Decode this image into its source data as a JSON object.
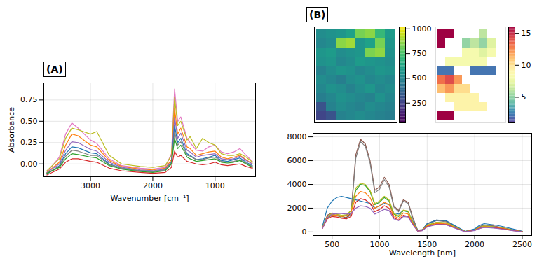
{
  "chart_data": [
    {
      "type": "line",
      "panel": "(A)",
      "x_label": "Wavenumber [cm⁻¹]",
      "y_label": "Absorbance",
      "grid": true,
      "xlim": [
        3750,
        350
      ],
      "xticks": [
        3000,
        2000,
        1000
      ],
      "ylim": [
        -0.15,
        0.95
      ],
      "yticks": [
        {
          "value": 0,
          "label": "0.00"
        },
        0.25,
        {
          "value": 0.5,
          "label": "0.50"
        },
        0.75
      ],
      "x": [
        3700,
        3500,
        3400,
        3300,
        3200,
        3000,
        2900,
        2700,
        2500,
        2200,
        2000,
        1800,
        1700,
        1650,
        1600,
        1550,
        1450,
        1400,
        1300,
        1200,
        1100,
        1000,
        900,
        800,
        700,
        600,
        500,
        400
      ],
      "series": [
        {
          "color": "#e377c2",
          "values": [
            -0.1,
            0.08,
            0.35,
            0.48,
            0.42,
            0.28,
            0.24,
            0.06,
            -0.02,
            -0.05,
            -0.06,
            -0.04,
            0.12,
            0.88,
            0.5,
            0.55,
            0.3,
            0.25,
            0.16,
            0.15,
            0.2,
            0.22,
            0.14,
            0.12,
            0.14,
            0.18,
            0.1,
            0.03
          ]
        },
        {
          "color": "#bcbd22",
          "values": [
            -0.08,
            0.06,
            0.3,
            0.42,
            0.4,
            0.35,
            0.38,
            0.1,
            0.0,
            -0.03,
            -0.04,
            -0.02,
            0.1,
            0.78,
            0.45,
            0.5,
            0.28,
            0.32,
            0.18,
            0.3,
            0.25,
            0.22,
            0.12,
            0.1,
            0.1,
            0.12,
            0.08,
            0.02
          ]
        },
        {
          "color": "#ff7f0e",
          "values": [
            -0.1,
            0.02,
            0.22,
            0.35,
            0.33,
            0.22,
            0.2,
            0.04,
            -0.03,
            -0.06,
            -0.07,
            -0.05,
            0.05,
            0.65,
            0.35,
            0.42,
            0.2,
            0.18,
            0.1,
            0.12,
            0.14,
            0.15,
            0.08,
            0.06,
            0.08,
            0.1,
            0.05,
            0.0
          ]
        },
        {
          "color": "#9467bd",
          "values": [
            -0.1,
            0.0,
            0.16,
            0.26,
            0.25,
            0.17,
            0.15,
            0.02,
            -0.04,
            -0.07,
            -0.08,
            -0.06,
            0.03,
            0.55,
            0.3,
            0.36,
            0.16,
            0.14,
            0.08,
            0.1,
            0.11,
            0.12,
            0.06,
            0.05,
            0.06,
            0.09,
            0.04,
            0.0
          ]
        },
        {
          "color": "#1f77b4",
          "values": [
            -0.12,
            -0.02,
            0.12,
            0.2,
            0.19,
            0.13,
            0.12,
            0.0,
            -0.05,
            -0.08,
            -0.09,
            -0.07,
            0.02,
            0.45,
            0.25,
            0.3,
            0.12,
            0.1,
            0.05,
            0.06,
            0.08,
            0.1,
            0.04,
            0.03,
            0.05,
            0.07,
            0.02,
            -0.02
          ]
        },
        {
          "color": "#7f7f7f",
          "values": [
            -0.11,
            -0.03,
            0.09,
            0.16,
            0.15,
            0.1,
            0.1,
            -0.01,
            -0.05,
            -0.08,
            -0.09,
            -0.07,
            0.01,
            0.38,
            0.22,
            0.26,
            0.1,
            0.09,
            0.05,
            0.05,
            0.07,
            0.08,
            0.03,
            0.02,
            0.03,
            0.05,
            0.01,
            -0.03
          ]
        },
        {
          "color": "#2ca02c",
          "values": [
            -0.11,
            -0.04,
            0.06,
            0.12,
            0.11,
            0.08,
            0.07,
            -0.02,
            -0.06,
            -0.09,
            -0.1,
            -0.08,
            0.0,
            0.3,
            0.18,
            0.22,
            0.08,
            0.06,
            0.03,
            0.04,
            0.05,
            0.06,
            0.02,
            0.01,
            0.02,
            0.04,
            0.0,
            -0.04
          ]
        },
        {
          "color": "#d62728",
          "values": [
            -0.13,
            -0.06,
            0.02,
            0.06,
            0.06,
            0.03,
            0.02,
            -0.05,
            -0.08,
            -0.1,
            -0.11,
            -0.1,
            -0.04,
            0.15,
            0.08,
            0.1,
            0.03,
            0.02,
            0.0,
            -0.01,
            0.0,
            0.02,
            -0.01,
            -0.02,
            -0.01,
            0.0,
            -0.03,
            -0.05
          ]
        }
      ]
    },
    {
      "type": "heatmap",
      "panel": "(B)",
      "tick_labels": false,
      "color": "viridis",
      "colorbar": {
        "range": [
          50,
          1020
        ],
        "ticks": [
          250,
          500,
          750,
          1000
        ]
      },
      "cells": [
        [
          520,
          540,
          560,
          600,
          820,
          850,
          700,
          580
        ],
        [
          500,
          520,
          850,
          880,
          560,
          600,
          820,
          560
        ],
        [
          560,
          580,
          520,
          540,
          560,
          830,
          860,
          540
        ],
        [
          540,
          560,
          500,
          520,
          580,
          560,
          540,
          520
        ],
        [
          480,
          520,
          560,
          540,
          500,
          520,
          560,
          540
        ],
        [
          520,
          500,
          460,
          520,
          540,
          500,
          520,
          500
        ],
        [
          500,
          540,
          520,
          480,
          520,
          560,
          500,
          520
        ],
        [
          460,
          500,
          540,
          520,
          500,
          480,
          540,
          500
        ],
        [
          300,
          480,
          520,
          500,
          480,
          520,
          500,
          480
        ],
        [
          250,
          300,
          480,
          500,
          520,
          500,
          480,
          460
        ]
      ]
    },
    {
      "type": "heatmap",
      "tick_labels": false,
      "color": "spectral",
      "colorbar": {
        "range": [
          1,
          16
        ],
        "ticks": [
          5,
          10,
          15
        ]
      },
      "cells": [
        [
          16,
          16,
          null,
          null,
          null,
          6,
          null,
          null
        ],
        [
          16,
          null,
          null,
          5,
          6,
          5,
          7,
          null
        ],
        [
          null,
          null,
          null,
          8,
          8,
          7,
          8,
          null
        ],
        [
          null,
          8,
          8,
          8,
          8,
          8,
          null,
          null
        ],
        [
          2,
          2,
          null,
          null,
          2,
          2,
          2,
          null
        ],
        [
          13,
          14,
          12,
          null,
          null,
          null,
          null,
          null
        ],
        [
          11,
          12,
          10,
          10,
          null,
          null,
          null,
          null
        ],
        [
          null,
          9,
          9,
          9,
          9,
          null,
          null,
          null
        ],
        [
          null,
          null,
          9,
          9,
          9,
          9,
          null,
          null
        ],
        [
          16,
          16,
          null,
          null,
          null,
          null,
          null,
          null
        ]
      ]
    },
    {
      "type": "line",
      "x_label": "Wavelength [nm]",
      "grid": true,
      "xlim": [
        300,
        2600
      ],
      "xticks": [
        500,
        1000,
        1500,
        2000,
        2500
      ],
      "ylim": [
        -300,
        8300
      ],
      "yticks": [
        0,
        2000,
        4000,
        6000,
        8000
      ],
      "x": [
        400,
        450,
        500,
        550,
        600,
        650,
        700,
        750,
        800,
        850,
        900,
        950,
        1000,
        1050,
        1100,
        1150,
        1200,
        1250,
        1300,
        1350,
        1400,
        1450,
        1500,
        1600,
        1700,
        1800,
        1900,
        2000,
        2050,
        2100,
        2200,
        2300,
        2400,
        2500
      ],
      "series": [
        {
          "color": "#8c564b",
          "values": [
            400,
            1400,
            1600,
            1500,
            1300,
            1200,
            1600,
            6500,
            7800,
            7400,
            6000,
            3500,
            3800,
            4600,
            4000,
            2200,
            1800,
            2700,
            2500,
            1200,
            150,
            200,
            700,
            1000,
            900,
            450,
            40,
            200,
            450,
            600,
            500,
            350,
            180,
            40
          ]
        },
        {
          "color": "#7f7f7f",
          "values": [
            380,
            1300,
            1500,
            1400,
            1200,
            1100,
            1500,
            6200,
            7600,
            7200,
            5800,
            3300,
            3600,
            4400,
            3800,
            2100,
            1700,
            2600,
            2400,
            1100,
            140,
            190,
            650,
            950,
            850,
            420,
            40,
            190,
            420,
            560,
            470,
            330,
            170,
            40
          ]
        },
        {
          "color": "#1f77b4",
          "values": [
            500,
            2000,
            2600,
            2900,
            3000,
            2900,
            2800,
            2700,
            2600,
            2500,
            2400,
            2000,
            2200,
            2400,
            2300,
            1600,
            1500,
            1800,
            1700,
            900,
            120,
            180,
            700,
            1000,
            950,
            500,
            50,
            250,
            550,
            700,
            600,
            450,
            250,
            60
          ]
        },
        {
          "color": "#2ca02c",
          "values": [
            350,
            1200,
            1400,
            1350,
            1300,
            1400,
            1800,
            3500,
            4000,
            3900,
            3400,
            2300,
            2500,
            2900,
            2600,
            1500,
            1300,
            1800,
            1700,
            800,
            100,
            150,
            550,
            800,
            750,
            380,
            30,
            160,
            380,
            480,
            420,
            300,
            150,
            30
          ]
        },
        {
          "color": "#bcbd22",
          "values": [
            360,
            1300,
            1550,
            1500,
            1400,
            1450,
            1800,
            3700,
            4100,
            4000,
            3500,
            2400,
            2600,
            3000,
            2700,
            1550,
            1350,
            1850,
            1750,
            820,
            100,
            160,
            580,
            820,
            770,
            390,
            32,
            170,
            390,
            500,
            430,
            310,
            155,
            32
          ]
        },
        {
          "color": "#ff7f0e",
          "values": [
            340,
            1250,
            1450,
            1400,
            1300,
            1350,
            1650,
            3000,
            3400,
            3300,
            2900,
            2000,
            2200,
            2500,
            2300,
            1350,
            1150,
            1600,
            1500,
            720,
            90,
            140,
            500,
            720,
            680,
            350,
            28,
            150,
            340,
            440,
            380,
            280,
            140,
            28
          ]
        },
        {
          "color": "#d62728",
          "values": [
            300,
            1100,
            1300,
            1250,
            1150,
            1100,
            1300,
            2500,
            2800,
            2700,
            2400,
            1700,
            1900,
            2200,
            2000,
            1200,
            1000,
            1400,
            1300,
            650,
            80,
            120,
            450,
            650,
            620,
            320,
            25,
            130,
            300,
            400,
            350,
            250,
            120,
            25
          ]
        },
        {
          "color": "#9467bd",
          "values": [
            300,
            1200,
            1500,
            1550,
            1550,
            1500,
            1550,
            2000,
            2200,
            2150,
            2000,
            1500,
            1700,
            1900,
            1800,
            1100,
            950,
            1300,
            1250,
            600,
            70,
            110,
            420,
            620,
            600,
            300,
            20,
            120,
            280,
            380,
            330,
            230,
            110,
            20
          ]
        }
      ]
    }
  ]
}
